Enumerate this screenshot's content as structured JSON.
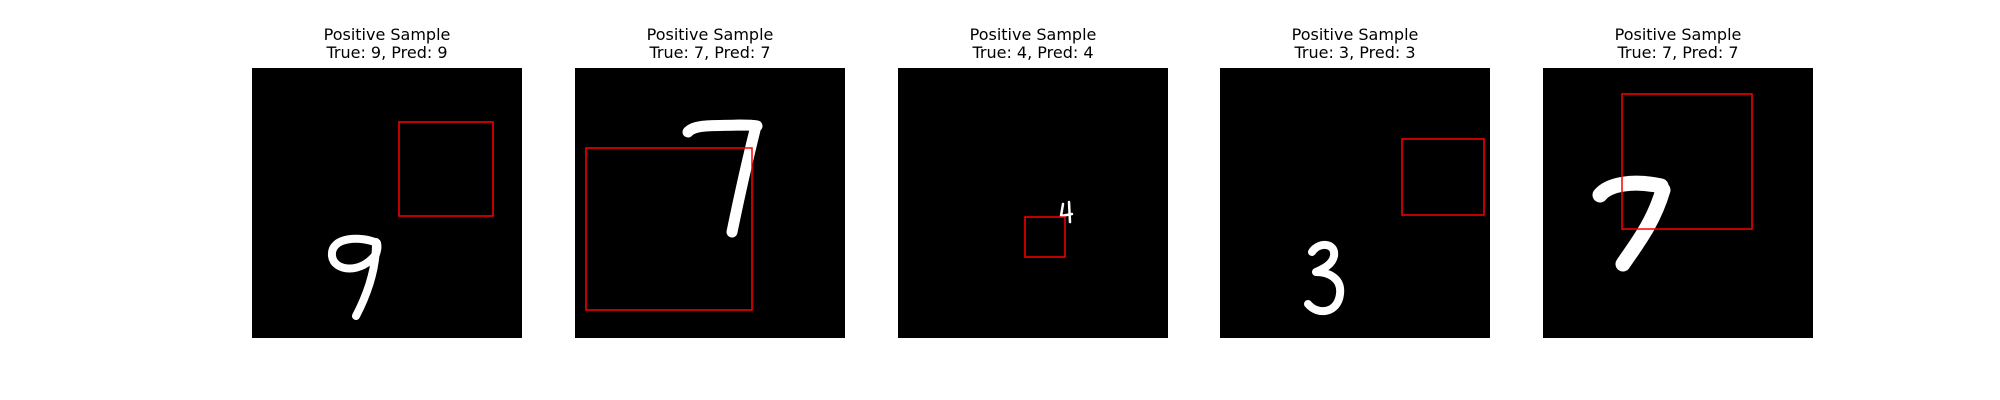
{
  "panels": [
    {
      "heading": "Positive Sample",
      "caption": "True: 9, Pred: 9",
      "digit": "9"
    },
    {
      "heading": "Positive Sample",
      "caption": "True: 7, Pred: 7",
      "digit": "7"
    },
    {
      "heading": "Positive Sample",
      "caption": "True: 4, Pred: 4",
      "digit": "4"
    },
    {
      "heading": "Positive Sample",
      "caption": "True: 3, Pred: 3",
      "digit": "3"
    },
    {
      "heading": "Positive Sample",
      "caption": "True: 7, Pred: 7",
      "digit": "7"
    }
  ],
  "colors": {
    "background": "#ffffff",
    "image_background": "#000000",
    "digit": "#ffffff",
    "bounding_box": "#ff0000"
  }
}
